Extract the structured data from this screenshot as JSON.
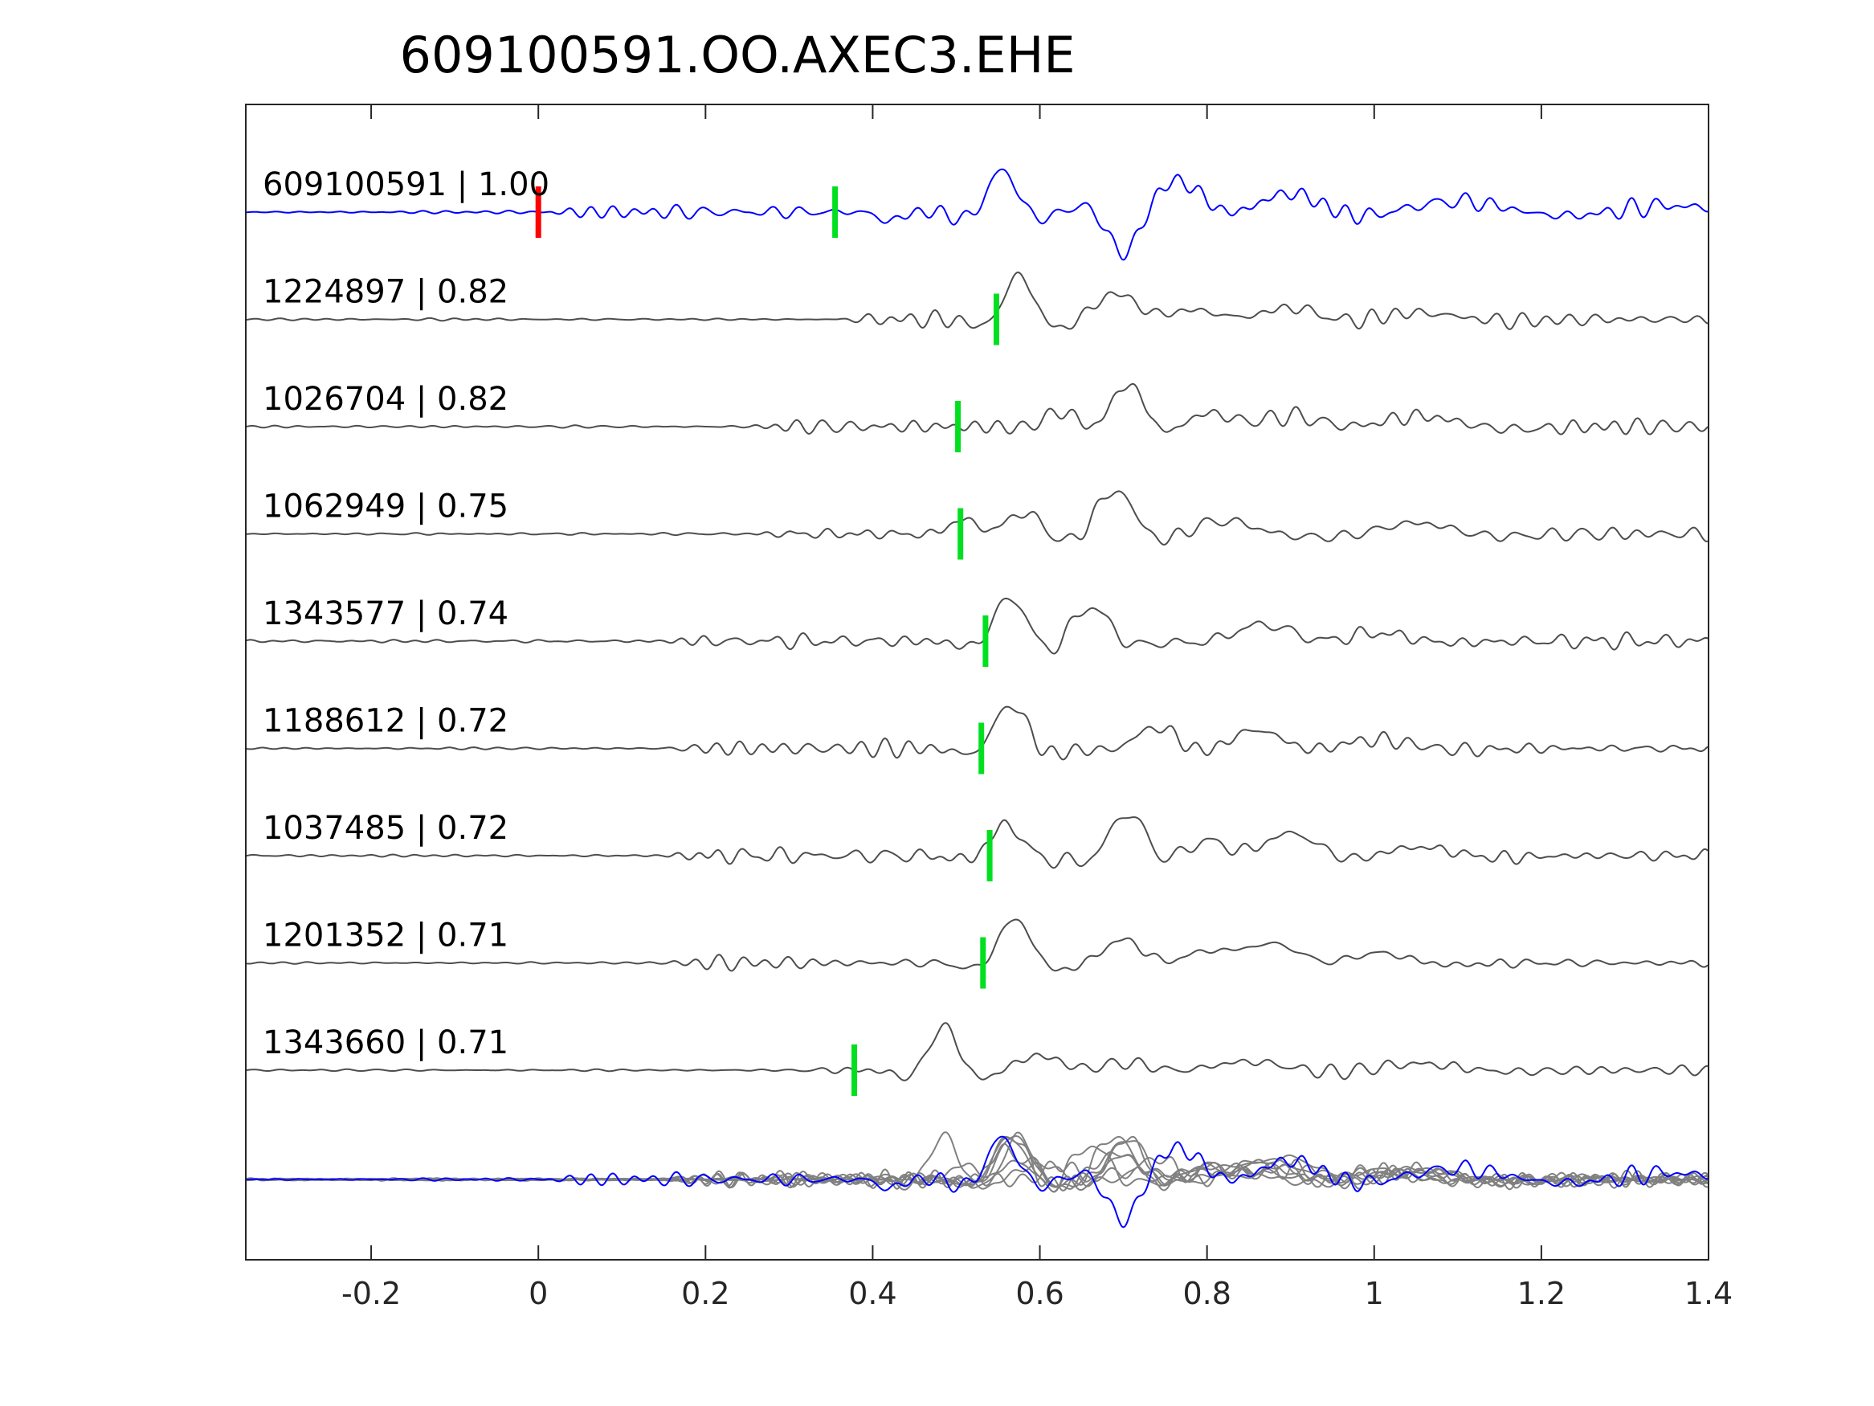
{
  "chart_data": {
    "type": "line",
    "title": "609100591.OO.AXEC3.EHE",
    "xlabel": "",
    "ylabel": "",
    "xlim": [
      -0.35,
      1.4
    ],
    "xticks": [
      -0.2,
      0,
      0.2,
      0.4,
      0.6,
      0.8,
      1.0,
      1.2,
      1.4
    ],
    "xtick_labels": [
      "-0.2",
      "0",
      "0.2",
      "0.4",
      "0.6",
      "0.8",
      "1",
      "1.2",
      "1.4"
    ],
    "grid": false,
    "legend": "none",
    "colors": {
      "reference": "#0000ff",
      "match": "#4d4d4d",
      "overlay": "#808080",
      "reference_pick": "#ff0000",
      "pick": "#00e020",
      "axis": "#262626"
    },
    "traces": [
      {
        "label": "609100591 | 1.00",
        "id": "609100591",
        "cc": 1.0,
        "color": "#0000ff",
        "pick_red": 0.0,
        "pick_green": 0.355,
        "onset": 0.0,
        "seed": 3,
        "wave": [
          [
            0.42,
            -0.2,
            0.6,
            0.02
          ],
          [
            0.555,
            0.95,
            0.85,
            0.028
          ],
          [
            0.7,
            -0.9,
            0.85,
            0.03
          ],
          [
            0.77,
            0.65,
            0.6,
            0.035
          ],
          [
            0.9,
            0.45,
            0.7,
            0.05
          ],
          [
            1.1,
            0.25,
            1.0,
            0.09
          ],
          [
            1.35,
            0.15,
            0.9,
            0.08
          ]
        ]
      },
      {
        "label": "1224897 | 0.82",
        "id": "1224897",
        "cc": 0.82,
        "color": "#4d4d4d",
        "pick_green": 0.548,
        "onset": 0.35,
        "seed": 11,
        "wave": [
          [
            0.575,
            1.0,
            0.85,
            0.028
          ],
          [
            0.69,
            0.6,
            0.7,
            0.035
          ],
          [
            0.78,
            0.25,
            0.6,
            0.05
          ],
          [
            0.9,
            0.3,
            0.8,
            0.05
          ],
          [
            1.05,
            0.15,
            1.0,
            0.08
          ]
        ]
      },
      {
        "label": "1026704 | 0.82",
        "id": "1026704",
        "cc": 0.82,
        "color": "#4d4d4d",
        "pick_green": 0.502,
        "onset": 0.25,
        "seed": 19,
        "wave": [
          [
            0.63,
            0.4,
            0.65,
            0.03
          ],
          [
            0.705,
            1.0,
            0.85,
            0.032
          ],
          [
            0.8,
            0.35,
            0.7,
            0.04
          ],
          [
            0.9,
            0.3,
            0.8,
            0.06
          ],
          [
            1.05,
            0.25,
            1.0,
            0.08
          ]
        ]
      },
      {
        "label": "1062949 | 0.75",
        "id": "1062949",
        "cc": 0.75,
        "color": "#4d4d4d",
        "pick_green": 0.505,
        "onset": 0.25,
        "seed": 27,
        "wave": [
          [
            0.51,
            0.35,
            0.6,
            0.025
          ],
          [
            0.58,
            0.5,
            0.7,
            0.03
          ],
          [
            0.69,
            1.0,
            0.8,
            0.035
          ],
          [
            0.82,
            0.3,
            0.7,
            0.05
          ],
          [
            1.05,
            0.25,
            1.0,
            0.07
          ]
        ]
      },
      {
        "label": "1343577 | 0.74",
        "id": "1343577",
        "cc": 0.74,
        "color": "#4d4d4d",
        "pick_green": 0.535,
        "onset": 0.15,
        "seed": 35,
        "wave": [
          [
            0.565,
            1.0,
            0.8,
            0.03
          ],
          [
            0.66,
            0.8,
            0.75,
            0.032
          ],
          [
            0.87,
            0.4,
            0.7,
            0.05
          ],
          [
            1.0,
            0.2,
            0.9,
            0.06
          ]
        ]
      },
      {
        "label": "1188612 | 0.72",
        "id": "1188612",
        "cc": 0.72,
        "color": "#4d4d4d",
        "pick_green": 0.53,
        "onset": 0.15,
        "seed": 43,
        "wave": [
          [
            0.565,
            1.0,
            0.8,
            0.03
          ],
          [
            0.74,
            0.5,
            0.7,
            0.035
          ],
          [
            0.86,
            0.45,
            0.75,
            0.045
          ],
          [
            1.0,
            0.2,
            0.9,
            0.07
          ]
        ]
      },
      {
        "label": "1037485 | 0.72",
        "id": "1037485",
        "cc": 0.72,
        "color": "#4d4d4d",
        "pick_green": 0.54,
        "onset": 0.15,
        "seed": 51,
        "wave": [
          [
            0.56,
            0.7,
            0.8,
            0.03
          ],
          [
            0.705,
            1.0,
            0.8,
            0.032
          ],
          [
            0.8,
            0.4,
            0.7,
            0.04
          ],
          [
            0.9,
            0.55,
            0.8,
            0.05
          ],
          [
            1.05,
            0.2,
            1.0,
            0.07
          ]
        ]
      },
      {
        "label": "1201352 | 0.71",
        "id": "1201352",
        "cc": 0.71,
        "color": "#4d4d4d",
        "pick_green": 0.532,
        "onset": 0.15,
        "seed": 59,
        "wave": [
          [
            0.57,
            1.0,
            0.8,
            0.03
          ],
          [
            0.7,
            0.55,
            0.7,
            0.035
          ],
          [
            0.8,
            0.35,
            0.7,
            0.045
          ],
          [
            0.88,
            0.5,
            0.8,
            0.05
          ],
          [
            1.0,
            0.25,
            0.9,
            0.06
          ]
        ]
      },
      {
        "label": "1343660 | 0.71",
        "id": "1343660",
        "cc": 0.71,
        "color": "#4d4d4d",
        "pick_green": 0.378,
        "onset": 0.3,
        "seed": 67,
        "wave": [
          [
            0.485,
            1.0,
            0.85,
            0.028
          ],
          [
            0.6,
            0.35,
            0.75,
            0.04
          ],
          [
            0.7,
            0.2,
            0.8,
            0.05
          ],
          [
            0.85,
            0.2,
            0.8,
            0.07
          ],
          [
            1.05,
            0.15,
            1.0,
            0.08
          ]
        ]
      }
    ]
  }
}
